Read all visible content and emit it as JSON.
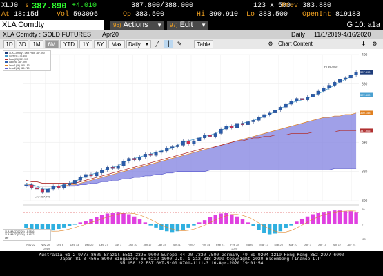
{
  "quote": {
    "ticker": "XLJ0",
    "s_label": "s",
    "last": "387.890",
    "change": "+4.010",
    "bid_ask": "387.800/388.000",
    "size": "123 x 500",
    "prev_label": "Prev",
    "prev": "383.880",
    "at_label": "At",
    "at": "18:15d",
    "vol_label": "Vol",
    "vol": "593095",
    "op_label": "Op",
    "op": "383.500",
    "hi_label": "Hi",
    "hi": "390.910",
    "lo_label": "Lo",
    "lo": "383.500",
    "oi_label": "OpenInt",
    "oi": "819183"
  },
  "command": {
    "ticker": "XLA Comdty",
    "actions_num": "96)",
    "actions_label": "Actions",
    "edit_num": "97)",
    "edit_label": "Edit",
    "function": "G 10: a1a"
  },
  "title": {
    "security": "XLA Comdty : GOLD FUTURES",
    "contract": "Apr20",
    "periodicity": "Daily",
    "range": "11/1/2019-4/16/2020"
  },
  "toolbar": {
    "periods": [
      "1D",
      "3D",
      "1M",
      "6M",
      "YTD",
      "1Y",
      "5Y",
      "Max"
    ],
    "active_period": "6M",
    "frequency": "Daily",
    "table_label": "Table",
    "chart_content_label": "Chart Content"
  },
  "legend_main": [
    {
      "label": "XLA Comdty - Last Price",
      "value": "387.890",
      "color": "#1f3d7a"
    },
    {
      "label": "Conv(9)",
      "value": "372.400",
      "color": "#4aa0d0"
    },
    {
      "label": "Base(26)",
      "value": "347.905",
      "color": "#b03030"
    },
    {
      "label": "Lag(26)",
      "value": "387.890",
      "color": "#3060b0"
    },
    {
      "label": "Lead1(26)",
      "value": "360.153",
      "color": "#e08020"
    },
    {
      "label": "Lead2(52)",
      "value": "321.720",
      "color": "#6060d0"
    }
  ],
  "legend_macd": [
    {
      "label": "XLA MACD(12,26) 18.9836",
      "color": "#4aa0d0"
    },
    {
      "label": "XLA MACD(12,26) 16.4672",
      "color": "#e08020"
    },
    {
      "label": "Diff",
      "color": "#e040e0"
    }
  ],
  "chart_data": {
    "type": "candlestick",
    "x_tick_labels": [
      "Nov 22",
      "Nov 29",
      "Dec 6",
      "Dec 13",
      "Dec 20",
      "Dec 27",
      "Jan 3",
      "Jan 10",
      "Jan 17",
      "Jan 24",
      "Jan 31",
      "Feb 7",
      "Feb 14",
      "Feb 21",
      "Feb 28",
      "Mar 6",
      "Mar 13",
      "Mar 20",
      "Mar 27",
      "Apr 3",
      "Apr 10",
      "Apr 17",
      "Apr 24"
    ],
    "year_labels": [
      "2019",
      "2020"
    ],
    "y_tick_labels": [
      "300",
      "320",
      "340",
      "360",
      "380",
      "400"
    ],
    "annotations": {
      "low_label": "Low",
      "low_value": "307.700",
      "high_label": "Hi",
      "high_value": "390.910"
    },
    "price_labels": [
      "387.890",
      "372.400",
      "360.153",
      "347.905"
    ],
    "macd_y_tick_labels": [
      "20",
      "0",
      "-20"
    ],
    "price": [
      311,
      309,
      308,
      306,
      308,
      310,
      309,
      311,
      312,
      314,
      316,
      318,
      317,
      319,
      321,
      323,
      322,
      324,
      327,
      329,
      328,
      330,
      332,
      331,
      333,
      334,
      336,
      337,
      338,
      341,
      339,
      341,
      343,
      345,
      344,
      346,
      349,
      351,
      350,
      353,
      352,
      354,
      355,
      357,
      359,
      360,
      362,
      364,
      366,
      368,
      370,
      369,
      371,
      373,
      375,
      377,
      379,
      381,
      383,
      384,
      386,
      388
    ],
    "conversion_line": [
      312,
      311,
      310,
      308,
      308,
      309,
      310,
      311,
      312,
      313,
      315,
      317,
      318,
      319,
      320,
      322,
      323,
      324,
      326,
      328,
      329,
      330,
      331,
      332,
      333,
      334,
      335,
      336,
      338,
      340,
      341,
      342,
      343,
      344,
      345,
      346,
      348,
      350,
      351,
      352,
      353,
      354,
      355,
      356,
      358,
      359,
      361,
      363,
      365,
      367,
      368,
      369,
      370,
      372,
      373,
      375,
      377,
      379,
      381,
      383,
      385,
      387
    ],
    "base_line": [
      314,
      313,
      313,
      312,
      312,
      312,
      312,
      312,
      312,
      312,
      313,
      314,
      315,
      316,
      317,
      318,
      319,
      320,
      321,
      322,
      323,
      324,
      325,
      326,
      327,
      328,
      329,
      330,
      331,
      332,
      333,
      334,
      335,
      336,
      336,
      337,
      338,
      339,
      340,
      341,
      341,
      342,
      343,
      343,
      344,
      344,
      345,
      345,
      345,
      346,
      346,
      346,
      346,
      347,
      347,
      347,
      347,
      347,
      348,
      348,
      348,
      348
    ],
    "lead1": [
      311,
      311,
      310,
      310,
      310,
      310,
      310,
      310,
      311,
      311,
      312,
      313,
      314,
      315,
      316,
      317,
      318,
      319,
      320,
      321,
      322,
      323,
      324,
      325,
      326,
      327,
      328,
      329,
      330,
      331,
      332,
      333,
      334,
      335,
      336,
      337,
      338,
      339,
      340,
      341,
      342,
      343,
      344,
      345,
      346,
      347,
      348,
      349,
      350,
      351,
      352,
      353,
      354,
      355,
      356,
      357,
      357,
      358,
      358,
      359,
      359,
      360
    ],
    "lead2": [
      310,
      310,
      310,
      310,
      310,
      310,
      310,
      310,
      310,
      310,
      311,
      311,
      312,
      312,
      313,
      313,
      314,
      314,
      315,
      315,
      316,
      316,
      317,
      317,
      318,
      318,
      319,
      319,
      320,
      320,
      320,
      320,
      320,
      320,
      321,
      321,
      321,
      321,
      321,
      321,
      321,
      321,
      321,
      321,
      321,
      321,
      321,
      321,
      321,
      321,
      321,
      321,
      321,
      321,
      321,
      321,
      321,
      322,
      322,
      322,
      322,
      322
    ],
    "ylim": [
      300,
      400
    ],
    "macd_diff": [
      -6,
      -8,
      -10,
      -12,
      -11,
      -9,
      -7,
      -5,
      -3,
      -1,
      2,
      4,
      7,
      9,
      12,
      14,
      15,
      16,
      15,
      13,
      10,
      6,
      2,
      -2,
      -5,
      -8,
      -10,
      -11,
      -10,
      -8,
      -5,
      -2,
      2,
      5,
      9,
      12,
      14,
      15,
      13,
      10,
      6,
      2,
      -3,
      -8,
      -12,
      -14,
      -13,
      -10,
      -6,
      -2,
      3,
      7,
      10,
      13,
      15,
      16,
      17,
      18,
      18,
      17,
      17,
      16
    ],
    "macd_ylim": [
      -20,
      20
    ]
  },
  "footer": {
    "line1": "Australia 61 2 9777 8600 Brazil 5511 2395 9000 Europe 44 20 7330 7500 Germany 49 69 9204 1210 Hong Kong 852 2977 6000",
    "line2": "Japan 81 3 4565 8900        Singapore 65 6212 1000       U.S. 1 212 318 2000        Copyright 2020 Bloomberg Finance L.P.",
    "line3": "SN 158122 EST  GMT-5:00 G701-1111-3 16-Apr-2020 19:01:54"
  }
}
